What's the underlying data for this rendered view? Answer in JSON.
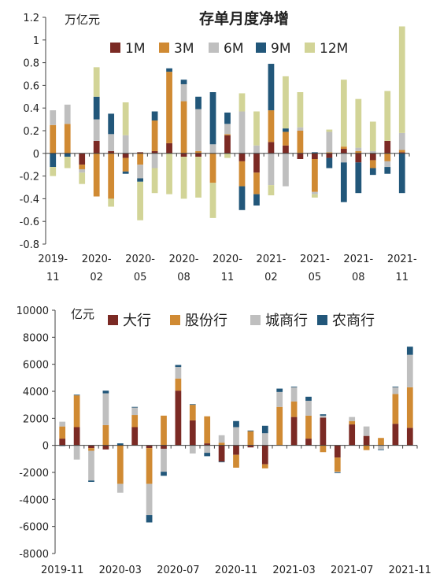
{
  "chart_data": [
    {
      "type": "bar",
      "stacked": true,
      "title": "存单月度净增",
      "unit_label": "万亿元",
      "ylim": [
        -0.8,
        1.2
      ],
      "yticks": [
        -0.8,
        -0.6,
        -0.4,
        -0.2,
        0,
        0.2,
        0.4,
        0.6,
        0.8,
        1,
        1.2
      ],
      "ytick_labels": [
        "-0.8",
        "-0.6",
        "-0.4",
        "-0.2",
        "0",
        "0.2",
        "0.4",
        "0.6",
        "0.8",
        "1",
        "1.2"
      ],
      "legend_position": "top",
      "grid": false,
      "categories": [
        "2019-11",
        "2019-12",
        "2020-01",
        "2020-02",
        "2020-03",
        "2020-04",
        "2020-05",
        "2020-06",
        "2020-07",
        "2020-08",
        "2020-09",
        "2020-10",
        "2020-11",
        "2020-12",
        "2021-01",
        "2021-02",
        "2021-03",
        "2021-04",
        "2021-05",
        "2021-06",
        "2021-07",
        "2021-08",
        "2021-09",
        "2021-10",
        "2021-11"
      ],
      "xtick_labels": [
        {
          "index": 0,
          "line1": "2019-",
          "line2": "11"
        },
        {
          "index": 3,
          "line1": "2020-",
          "line2": "02"
        },
        {
          "index": 6,
          "line1": "2020-",
          "line2": "05"
        },
        {
          "index": 9,
          "line1": "2020-",
          "line2": "08"
        },
        {
          "index": 12,
          "line1": "2020-",
          "line2": "11"
        },
        {
          "index": 15,
          "line1": "2021-",
          "line2": "02"
        },
        {
          "index": 18,
          "line1": "2021-",
          "line2": "05"
        },
        {
          "index": 21,
          "line1": "2021-",
          "line2": "08"
        },
        {
          "index": 24,
          "line1": "2021-",
          "line2": "11"
        }
      ],
      "series": [
        {
          "name": "1M",
          "color": "#7b2a24",
          "values": [
            0,
            0,
            -0.1,
            0.11,
            0.02,
            -0.04,
            0.01,
            0.02,
            0.09,
            -0.03,
            -0.03,
            0,
            0.16,
            -0.07,
            -0.17,
            0.1,
            0.07,
            -0.05,
            -0.05,
            -0.04,
            0.04,
            -0.08,
            -0.06,
            0.11,
            0.01
          ]
        },
        {
          "name": "3M",
          "color": "#d08a33",
          "values": [
            0.25,
            0.26,
            -0.04,
            -0.38,
            -0.4,
            -0.12,
            -0.1,
            0.27,
            0.63,
            0.46,
            0.02,
            -0.26,
            0.01,
            -0.22,
            -0.19,
            0.28,
            0.12,
            0.2,
            -0.29,
            0.01,
            0.02,
            0.02,
            -0.07,
            -0.07,
            0.02
          ]
        },
        {
          "name": "6M",
          "color": "#bfbfbf",
          "values": [
            0.13,
            0.17,
            -0.03,
            0.19,
            0.15,
            0.16,
            -0.12,
            -0.13,
            0,
            0.15,
            0.37,
            0.08,
            0.09,
            0.37,
            0.07,
            -0.28,
            -0.29,
            0.03,
            -0.02,
            0.18,
            -0.08,
            0.03,
            0.02,
            -0.05,
            0.15
          ]
        },
        {
          "name": "9M",
          "color": "#22577a",
          "values": [
            -0.12,
            -0.03,
            0,
            0.2,
            0.18,
            -0.02,
            -0.03,
            0.08,
            0.03,
            0.04,
            0.11,
            0.46,
            0.1,
            -0.21,
            -0.1,
            0.41,
            0.03,
            0,
            0.01,
            -0.09,
            -0.35,
            -0.27,
            -0.06,
            -0.06,
            -0.35
          ]
        },
        {
          "name": "12M",
          "color": "#d2d497",
          "values": [
            -0.08,
            -0.1,
            -0.1,
            0.26,
            -0.07,
            0.29,
            -0.34,
            -0.22,
            -0.36,
            -0.37,
            -0.36,
            -0.31,
            -0.04,
            0.16,
            0.3,
            -0.09,
            0.46,
            0.31,
            -0.03,
            0.02,
            0.59,
            0.43,
            0.26,
            0.44,
            0.94
          ]
        }
      ]
    },
    {
      "type": "bar",
      "stacked": true,
      "unit_label": "亿元",
      "ylim": [
        -8000,
        10000
      ],
      "yticks": [
        -8000,
        -6000,
        -4000,
        -2000,
        0,
        2000,
        4000,
        6000,
        8000,
        10000
      ],
      "ytick_labels": [
        "-8000",
        "-6000",
        "-4000",
        "-2000",
        "0",
        "2000",
        "4000",
        "6000",
        "8000",
        "10000"
      ],
      "legend_position": "top",
      "grid": false,
      "categories": [
        "2019-11",
        "2019-12",
        "2020-01",
        "2020-02",
        "2020-03",
        "2020-04",
        "2020-05",
        "2020-06",
        "2020-07",
        "2020-08",
        "2020-09",
        "2020-10",
        "2020-11",
        "2020-12",
        "2021-01",
        "2021-02",
        "2021-03",
        "2021-04",
        "2021-05",
        "2021-06",
        "2021-07",
        "2021-08",
        "2021-09",
        "2021-10",
        "2021-11"
      ],
      "xtick_labels": [
        {
          "index": 0,
          "label": "2019-11"
        },
        {
          "index": 4,
          "label": "2020-03"
        },
        {
          "index": 8,
          "label": "2020-07"
        },
        {
          "index": 12,
          "label": "2020-11"
        },
        {
          "index": 16,
          "label": "2021-03"
        },
        {
          "index": 20,
          "label": "2021-07"
        },
        {
          "index": 24,
          "label": "2021-11"
        }
      ],
      "series": [
        {
          "name": "大行",
          "color": "#7b2a24",
          "values": [
            500,
            1350,
            -200,
            -300,
            0,
            1350,
            -200,
            -250,
            4050,
            1850,
            150,
            -1200,
            -700,
            -150,
            -1400,
            0,
            2100,
            500,
            2050,
            -900,
            1550,
            700,
            0,
            1600,
            1300
          ]
        },
        {
          "name": "股份行",
          "color": "#d08a33",
          "values": [
            900,
            2350,
            -200,
            1500,
            -2850,
            900,
            -2650,
            2200,
            900,
            1150,
            2000,
            200,
            -950,
            1050,
            -300,
            2850,
            1150,
            1700,
            -500,
            -1050,
            250,
            -350,
            550,
            2200,
            3000
          ]
        },
        {
          "name": "城商行",
          "color": "#bfbfbf",
          "values": [
            350,
            -1050,
            -2200,
            2350,
            -650,
            550,
            -2300,
            -1700,
            850,
            -600,
            -550,
            550,
            1350,
            0,
            900,
            1100,
            1050,
            1100,
            150,
            -50,
            300,
            700,
            -300,
            500,
            2400
          ]
        },
        {
          "name": "农商行",
          "color": "#22577a",
          "values": [
            -50,
            50,
            -100,
            200,
            150,
            50,
            -550,
            -300,
            150,
            50,
            -250,
            -50,
            450,
            50,
            550,
            250,
            50,
            300,
            100,
            -50,
            0,
            0,
            -50,
            50,
            600
          ]
        }
      ]
    }
  ]
}
